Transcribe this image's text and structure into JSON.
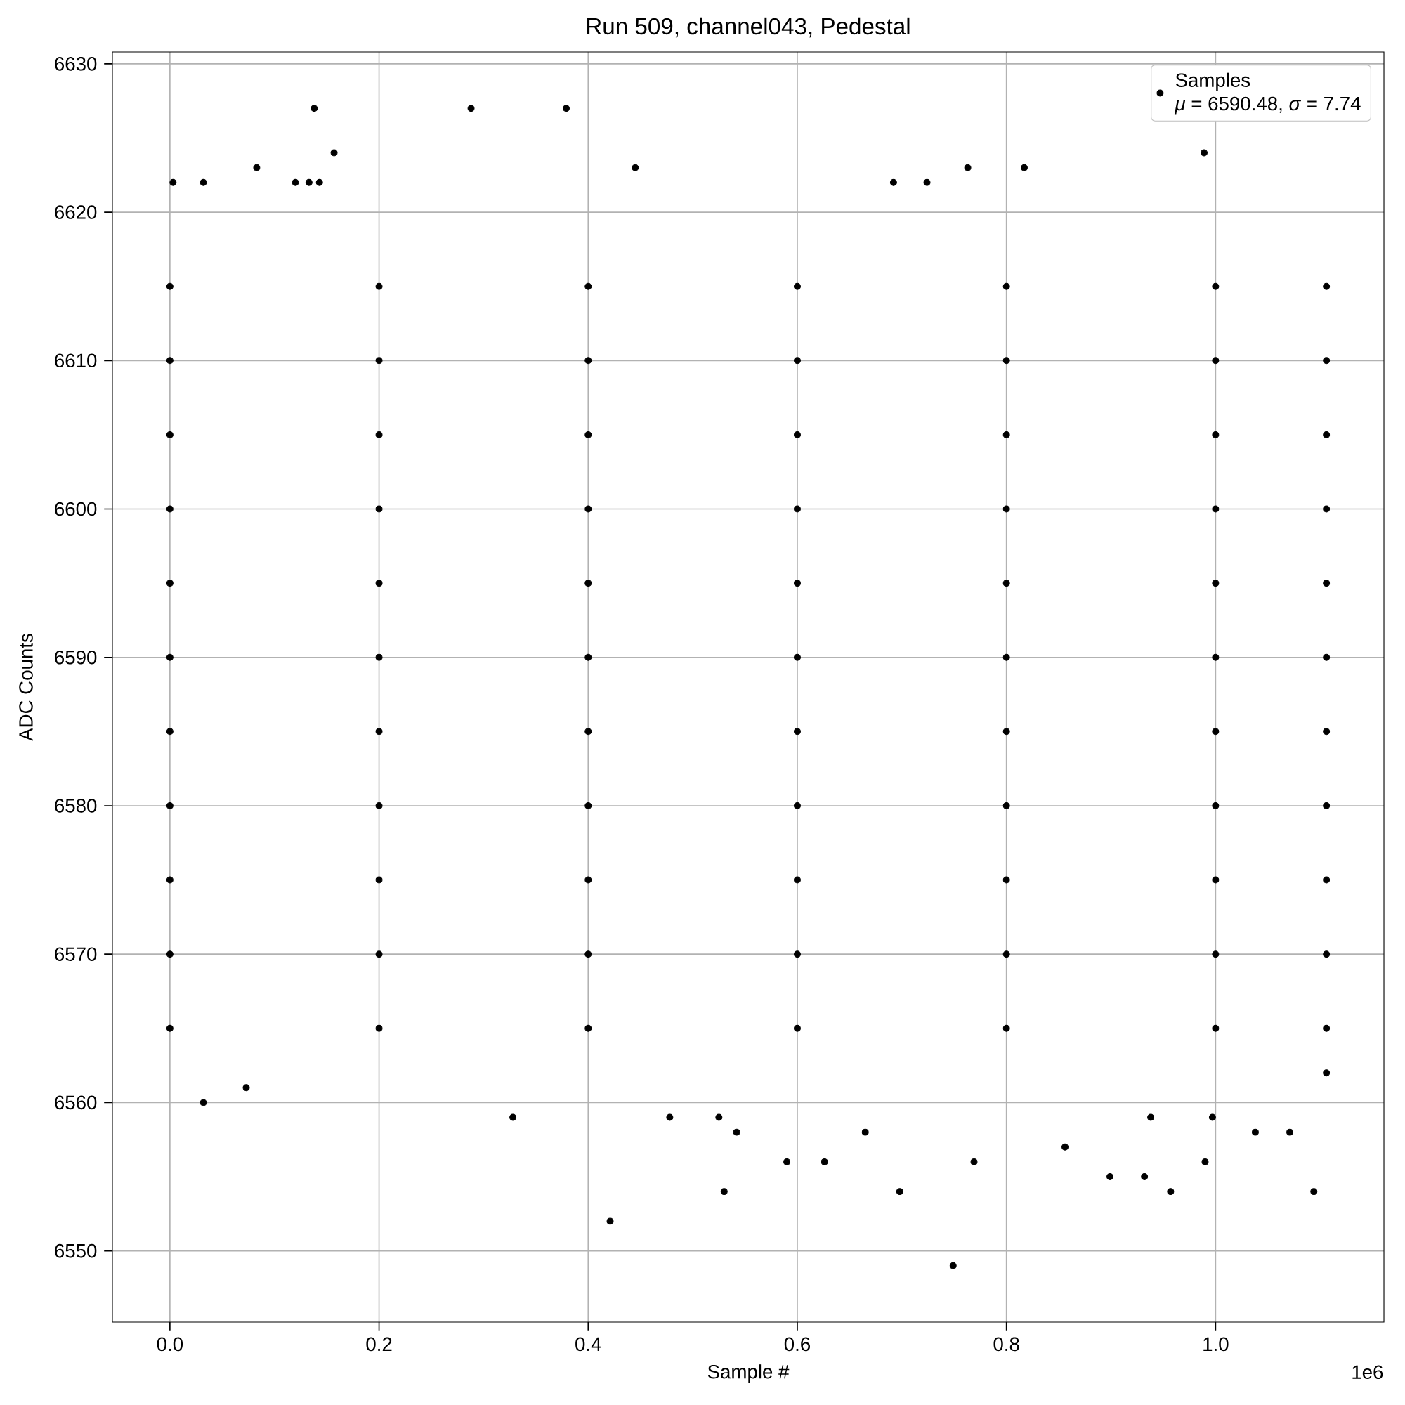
{
  "chart_data": {
    "type": "scatter",
    "title": "Run 509, channel043, Pedestal",
    "xlabel": "Sample #",
    "ylabel": "ADC Counts",
    "annotations": [
      "*μ* = 6590.48, *σ* = 7.74",
      "1e6"
    ],
    "series": [
      {
        "name": "Samples",
        "color": "#000000",
        "x": [
          0,
          0.2,
          0.4,
          0.6,
          0.8,
          1.0,
          1.106,
          0,
          0.2,
          0.4,
          0.6,
          0.8,
          1.0,
          1.106,
          0,
          0.2,
          0.4,
          0.6,
          0.8,
          1.0,
          1.106,
          0,
          0.2,
          0.4,
          0.6,
          0.8,
          1.0,
          1.106,
          0,
          0.2,
          0.4,
          0.6,
          0.8,
          1.0,
          1.106,
          0,
          0.2,
          0.4,
          0.6,
          0.8,
          1.0,
          1.106,
          0,
          0.2,
          0.4,
          0.6,
          0.8,
          1.0,
          1.106,
          0,
          0.2,
          0.4,
          0.6,
          0.8,
          1.0,
          1.106,
          0,
          0.2,
          0.4,
          0.6,
          0.8,
          1.0,
          1.106,
          0,
          0.2,
          0.4,
          0.6,
          0.8,
          1.0,
          1.106,
          0,
          0.2,
          0.4,
          0.6,
          0.8,
          1.0,
          1.106,
          0.138,
          0.288,
          0.379,
          0.157,
          0.989,
          0.003,
          0.032,
          0.12,
          0.133,
          0.143,
          0.445,
          0.083,
          0.763,
          0.817,
          0.692,
          0.724,
          0.421,
          0.749,
          0.53,
          0.698,
          0.957,
          1.094,
          0.59,
          0.626,
          0.769,
          0.856,
          0.899,
          0.932,
          0.99,
          0.032,
          0.073,
          0.328,
          0.478,
          0.525,
          0.542,
          0.665,
          1.071,
          1.038,
          0.938,
          0.997,
          1.106
        ],
        "values": [
          6565,
          6565,
          6565,
          6565,
          6565,
          6565,
          6565,
          6570,
          6570,
          6570,
          6570,
          6570,
          6570,
          6570,
          6575,
          6575,
          6575,
          6575,
          6575,
          6575,
          6575,
          6580,
          6580,
          6580,
          6580,
          6580,
          6580,
          6580,
          6585,
          6585,
          6585,
          6585,
          6585,
          6585,
          6585,
          6590,
          6590,
          6590,
          6590,
          6590,
          6590,
          6590,
          6595,
          6595,
          6595,
          6595,
          6595,
          6595,
          6595,
          6600,
          6600,
          6600,
          6600,
          6600,
          6600,
          6600,
          6605,
          6605,
          6605,
          6605,
          6605,
          6605,
          6605,
          6610,
          6610,
          6610,
          6610,
          6610,
          6610,
          6610,
          6615,
          6615,
          6615,
          6615,
          6615,
          6615,
          6615,
          6627,
          6627,
          6627,
          6624,
          6624,
          6622,
          6622,
          6622,
          6622,
          6622,
          6623,
          6623,
          6623,
          6623,
          6622,
          6622,
          6552,
          6549,
          6554,
          6554,
          6554,
          6554,
          6556,
          6556,
          6556,
          6557,
          6555,
          6555,
          6556,
          6560,
          6561,
          6559,
          6559,
          6559,
          6558,
          6558,
          6558,
          6558,
          6559,
          6559,
          6562
        ]
      }
    ],
    "xlim": [
      -0.055,
      1.161
    ],
    "ylim": [
      6545.2,
      6630.8
    ],
    "xticks": [
      {
        "value": 0,
        "label": "0.0"
      },
      0.2,
      0.4,
      0.6,
      0.8,
      {
        "value": 1,
        "label": "1.0"
      }
    ],
    "yticks": [
      6550,
      6560,
      6570,
      6580,
      6590,
      6600,
      6610,
      6620,
      6630
    ],
    "grid": true,
    "legend": "top right",
    "marker": "circle"
  }
}
